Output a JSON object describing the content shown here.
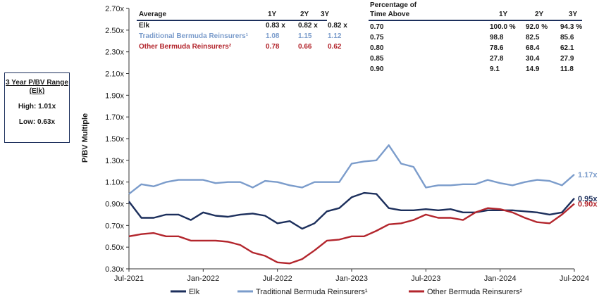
{
  "box": {
    "title": "3 Year P/BV Range (Elk)",
    "high_label": "High: 1.01x",
    "low_label": "Low: 0.63x"
  },
  "average_table": {
    "header": [
      "Average",
      "1Y",
      "2Y",
      "3Y"
    ],
    "rows": [
      {
        "name": "Elk",
        "v1": "0.83 x",
        "v2": "0.82 x",
        "v3": "0.82 x",
        "color": "#1c2f5c"
      },
      {
        "name": "Traditional Bermuda Reinsurers¹",
        "v1": "1.08",
        "v2": "1.15",
        "v3": "1.12",
        "color": "#7b9ccb"
      },
      {
        "name": "Other Bermuda Reinsurers²",
        "v1": "0.78",
        "v2": "0.66",
        "v3": "0.62",
        "color": "#b3262d"
      }
    ]
  },
  "percentage_table": {
    "header_line1": "Percentage of",
    "header_line2": "Time Above",
    "cols": [
      "1Y",
      "2Y",
      "3Y"
    ],
    "rows": [
      {
        "t": "0.70",
        "v1": "100.0 %",
        "v2": "92.0 %",
        "v3": "94.3 %"
      },
      {
        "t": "0.75",
        "v1": "98.8",
        "v2": "82.5",
        "v3": "85.6"
      },
      {
        "t": "0.80",
        "v1": "78.6",
        "v2": "68.4",
        "v3": "62.1"
      },
      {
        "t": "0.85",
        "v1": "27.8",
        "v2": "30.4",
        "v3": "27.9"
      },
      {
        "t": "0.90",
        "v1": "9.1",
        "v2": "14.9",
        "v3": "11.8"
      }
    ]
  },
  "chart_data": {
    "type": "line",
    "ylabel": "P/BV Multiple",
    "ylim": [
      0.3,
      2.7
    ],
    "yticks": [
      "0.30x",
      "0.50x",
      "0.70x",
      "0.90x",
      "1.10x",
      "1.30x",
      "1.50x",
      "1.70x",
      "1.90x",
      "2.10x",
      "2.30x",
      "2.50x",
      "2.70x"
    ],
    "xlim": [
      "2021-07",
      "2024-07"
    ],
    "xticks": [
      "Jul-2021",
      "Jan-2022",
      "Jul-2022",
      "Jan-2023",
      "Jul-2023",
      "Jan-2024",
      "Jul-2024"
    ],
    "x": [
      "2021-07",
      "2021-08",
      "2021-09",
      "2021-10",
      "2021-11",
      "2021-12",
      "2022-01",
      "2022-02",
      "2022-03",
      "2022-04",
      "2022-05",
      "2022-06",
      "2022-07",
      "2022-08",
      "2022-09",
      "2022-10",
      "2022-11",
      "2022-12",
      "2023-01",
      "2023-02",
      "2023-03",
      "2023-04",
      "2023-05",
      "2023-06",
      "2023-07",
      "2023-08",
      "2023-09",
      "2023-10",
      "2023-11",
      "2023-12",
      "2024-01",
      "2024-02",
      "2024-03",
      "2024-04",
      "2024-05",
      "2024-06",
      "2024-07"
    ],
    "series": [
      {
        "name": "Traditional Bermuda Reinsurers¹",
        "color": "#7b9ccb",
        "end_label": "1.17x",
        "values": [
          0.99,
          1.08,
          1.06,
          1.1,
          1.12,
          1.12,
          1.12,
          1.09,
          1.1,
          1.1,
          1.05,
          1.11,
          1.1,
          1.07,
          1.05,
          1.1,
          1.1,
          1.1,
          1.27,
          1.29,
          1.3,
          1.44,
          1.27,
          1.24,
          1.05,
          1.07,
          1.07,
          1.08,
          1.08,
          1.12,
          1.09,
          1.07,
          1.1,
          1.12,
          1.11,
          1.07,
          1.17
        ]
      },
      {
        "name": "Elk",
        "color": "#1c2f5c",
        "end_label": "0.95x",
        "values": [
          0.92,
          0.77,
          0.77,
          0.8,
          0.8,
          0.75,
          0.82,
          0.79,
          0.78,
          0.8,
          0.81,
          0.79,
          0.72,
          0.74,
          0.67,
          0.72,
          0.83,
          0.86,
          0.96,
          1.0,
          0.99,
          0.86,
          0.84,
          0.84,
          0.85,
          0.84,
          0.85,
          0.82,
          0.82,
          0.84,
          0.84,
          0.84,
          0.83,
          0.82,
          0.8,
          0.82,
          0.95
        ]
      },
      {
        "name": "Other Bermuda Reinsurers²",
        "color": "#b3262d",
        "end_label": "0.90x",
        "values": [
          0.6,
          0.62,
          0.63,
          0.6,
          0.6,
          0.56,
          0.56,
          0.56,
          0.55,
          0.52,
          0.45,
          0.42,
          0.36,
          0.35,
          0.39,
          0.47,
          0.56,
          0.57,
          0.6,
          0.6,
          0.65,
          0.71,
          0.72,
          0.75,
          0.8,
          0.77,
          0.77,
          0.75,
          0.82,
          0.86,
          0.85,
          0.82,
          0.77,
          0.73,
          0.72,
          0.8,
          0.9
        ]
      }
    ],
    "legend": {
      "placement": "bottom",
      "items": [
        {
          "name": "Elk",
          "color": "#1c2f5c"
        },
        {
          "name": "Traditional Bermuda Reinsurers¹",
          "color": "#7b9ccb"
        },
        {
          "name": "Other Bermuda Reinsurers²",
          "color": "#b3262d"
        }
      ]
    }
  }
}
